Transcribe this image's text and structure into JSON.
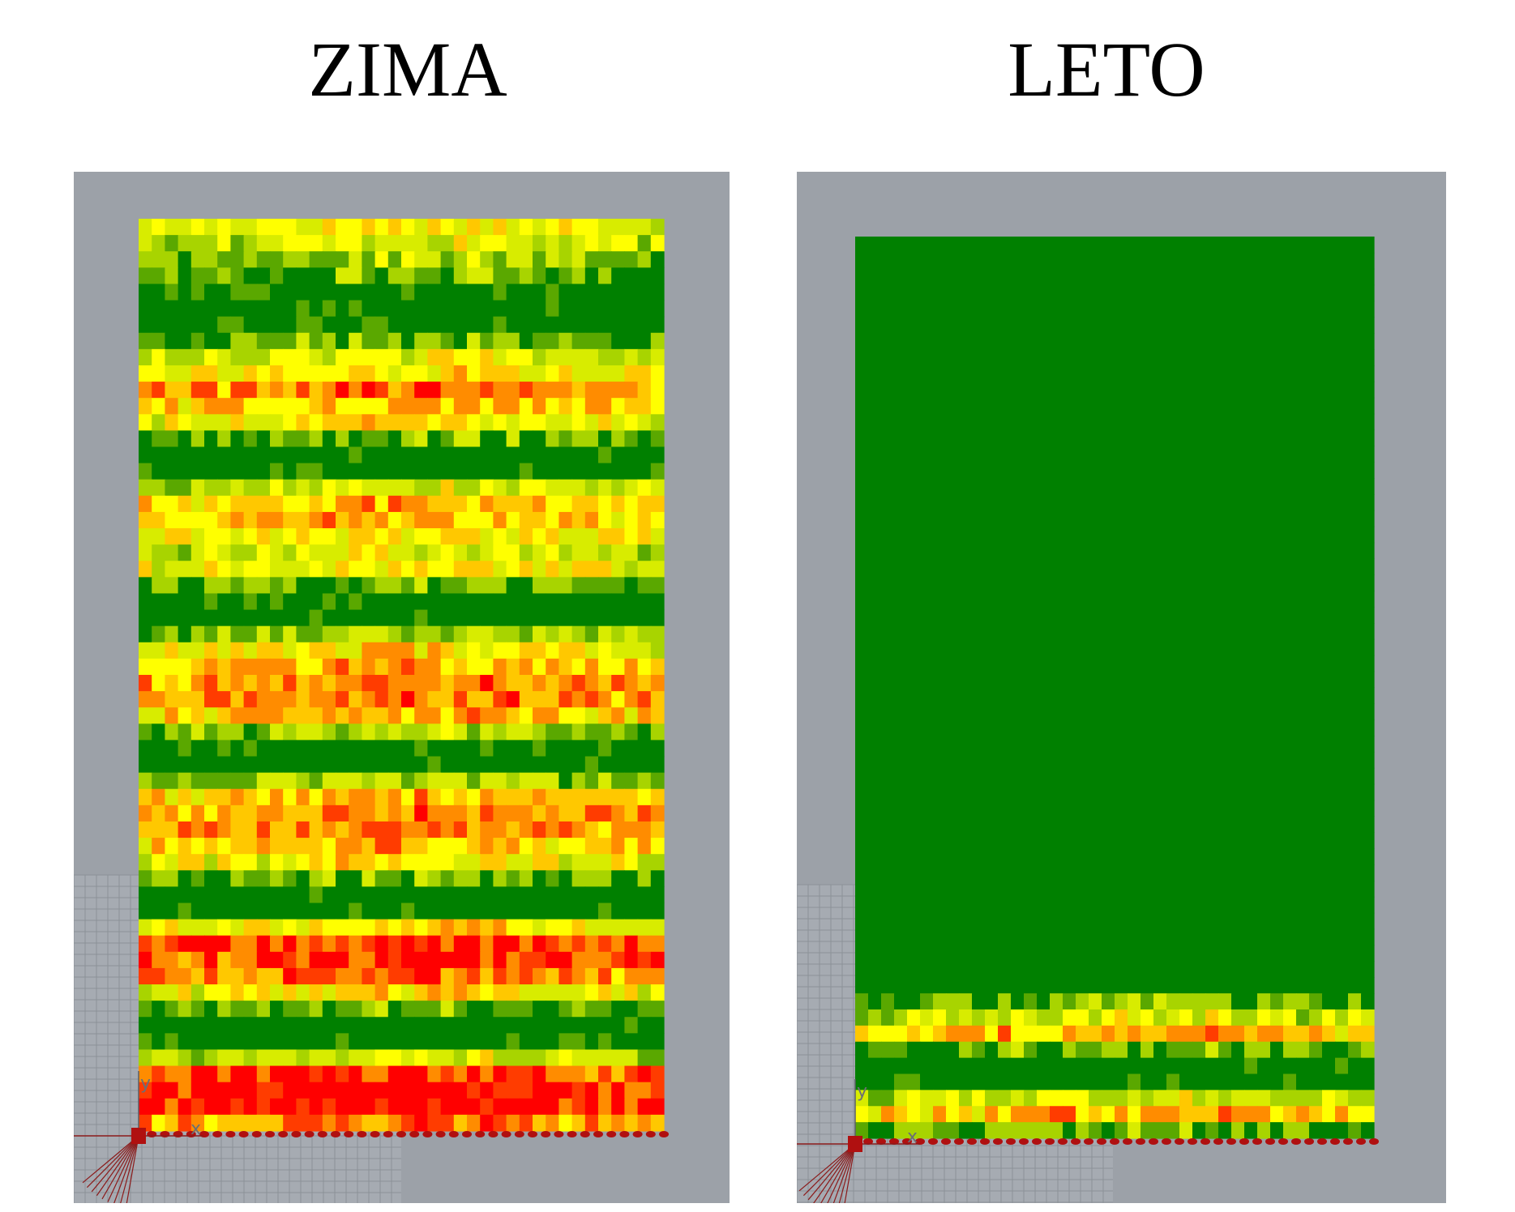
{
  "titles": {
    "left": "ZIMA",
    "right": "LETO"
  },
  "axis_labels": {
    "x": "x",
    "y": "y"
  },
  "palette": [
    "#008000",
    "#5aa800",
    "#a8d400",
    "#d8ec00",
    "#ffff00",
    "#ffc800",
    "#ff8c00",
    "#ff3c00",
    "#ff0000"
  ],
  "chart_data": [
    {
      "type": "heatmap",
      "title": "ZIMA",
      "columns": 40,
      "rows": 56,
      "scale": "0 = green (low) … 8 = red (high)",
      "row_profile": [
        4,
        3,
        2,
        1,
        0,
        0,
        0,
        1,
        3,
        4,
        6,
        5,
        4,
        1,
        0,
        0,
        3,
        5,
        5,
        4,
        3,
        4,
        1,
        0,
        0,
        2,
        4,
        5,
        6,
        6,
        5,
        2,
        0,
        0,
        2,
        5,
        6,
        6,
        5,
        4,
        1,
        0,
        0,
        4,
        7,
        7,
        6,
        4,
        1,
        0,
        0,
        3,
        7,
        8,
        8,
        6
      ],
      "seed": 17
    },
    {
      "type": "heatmap",
      "title": "LETO",
      "columns": 40,
      "rows": 56,
      "scale": "0 = green (low) … 8 = red (high)",
      "row_profile": [
        0,
        0,
        0,
        0,
        0,
        0,
        0,
        0,
        0,
        0,
        0,
        0,
        0,
        0,
        0,
        0,
        0,
        0,
        0,
        0,
        0,
        0,
        0,
        0,
        0,
        0,
        0,
        0,
        0,
        0,
        0,
        0,
        0,
        0,
        0,
        0,
        0,
        0,
        0,
        0,
        0,
        0,
        0,
        0,
        0,
        0,
        0,
        1,
        3,
        5,
        1,
        0,
        0,
        3,
        5,
        1
      ],
      "seed": 42
    }
  ]
}
